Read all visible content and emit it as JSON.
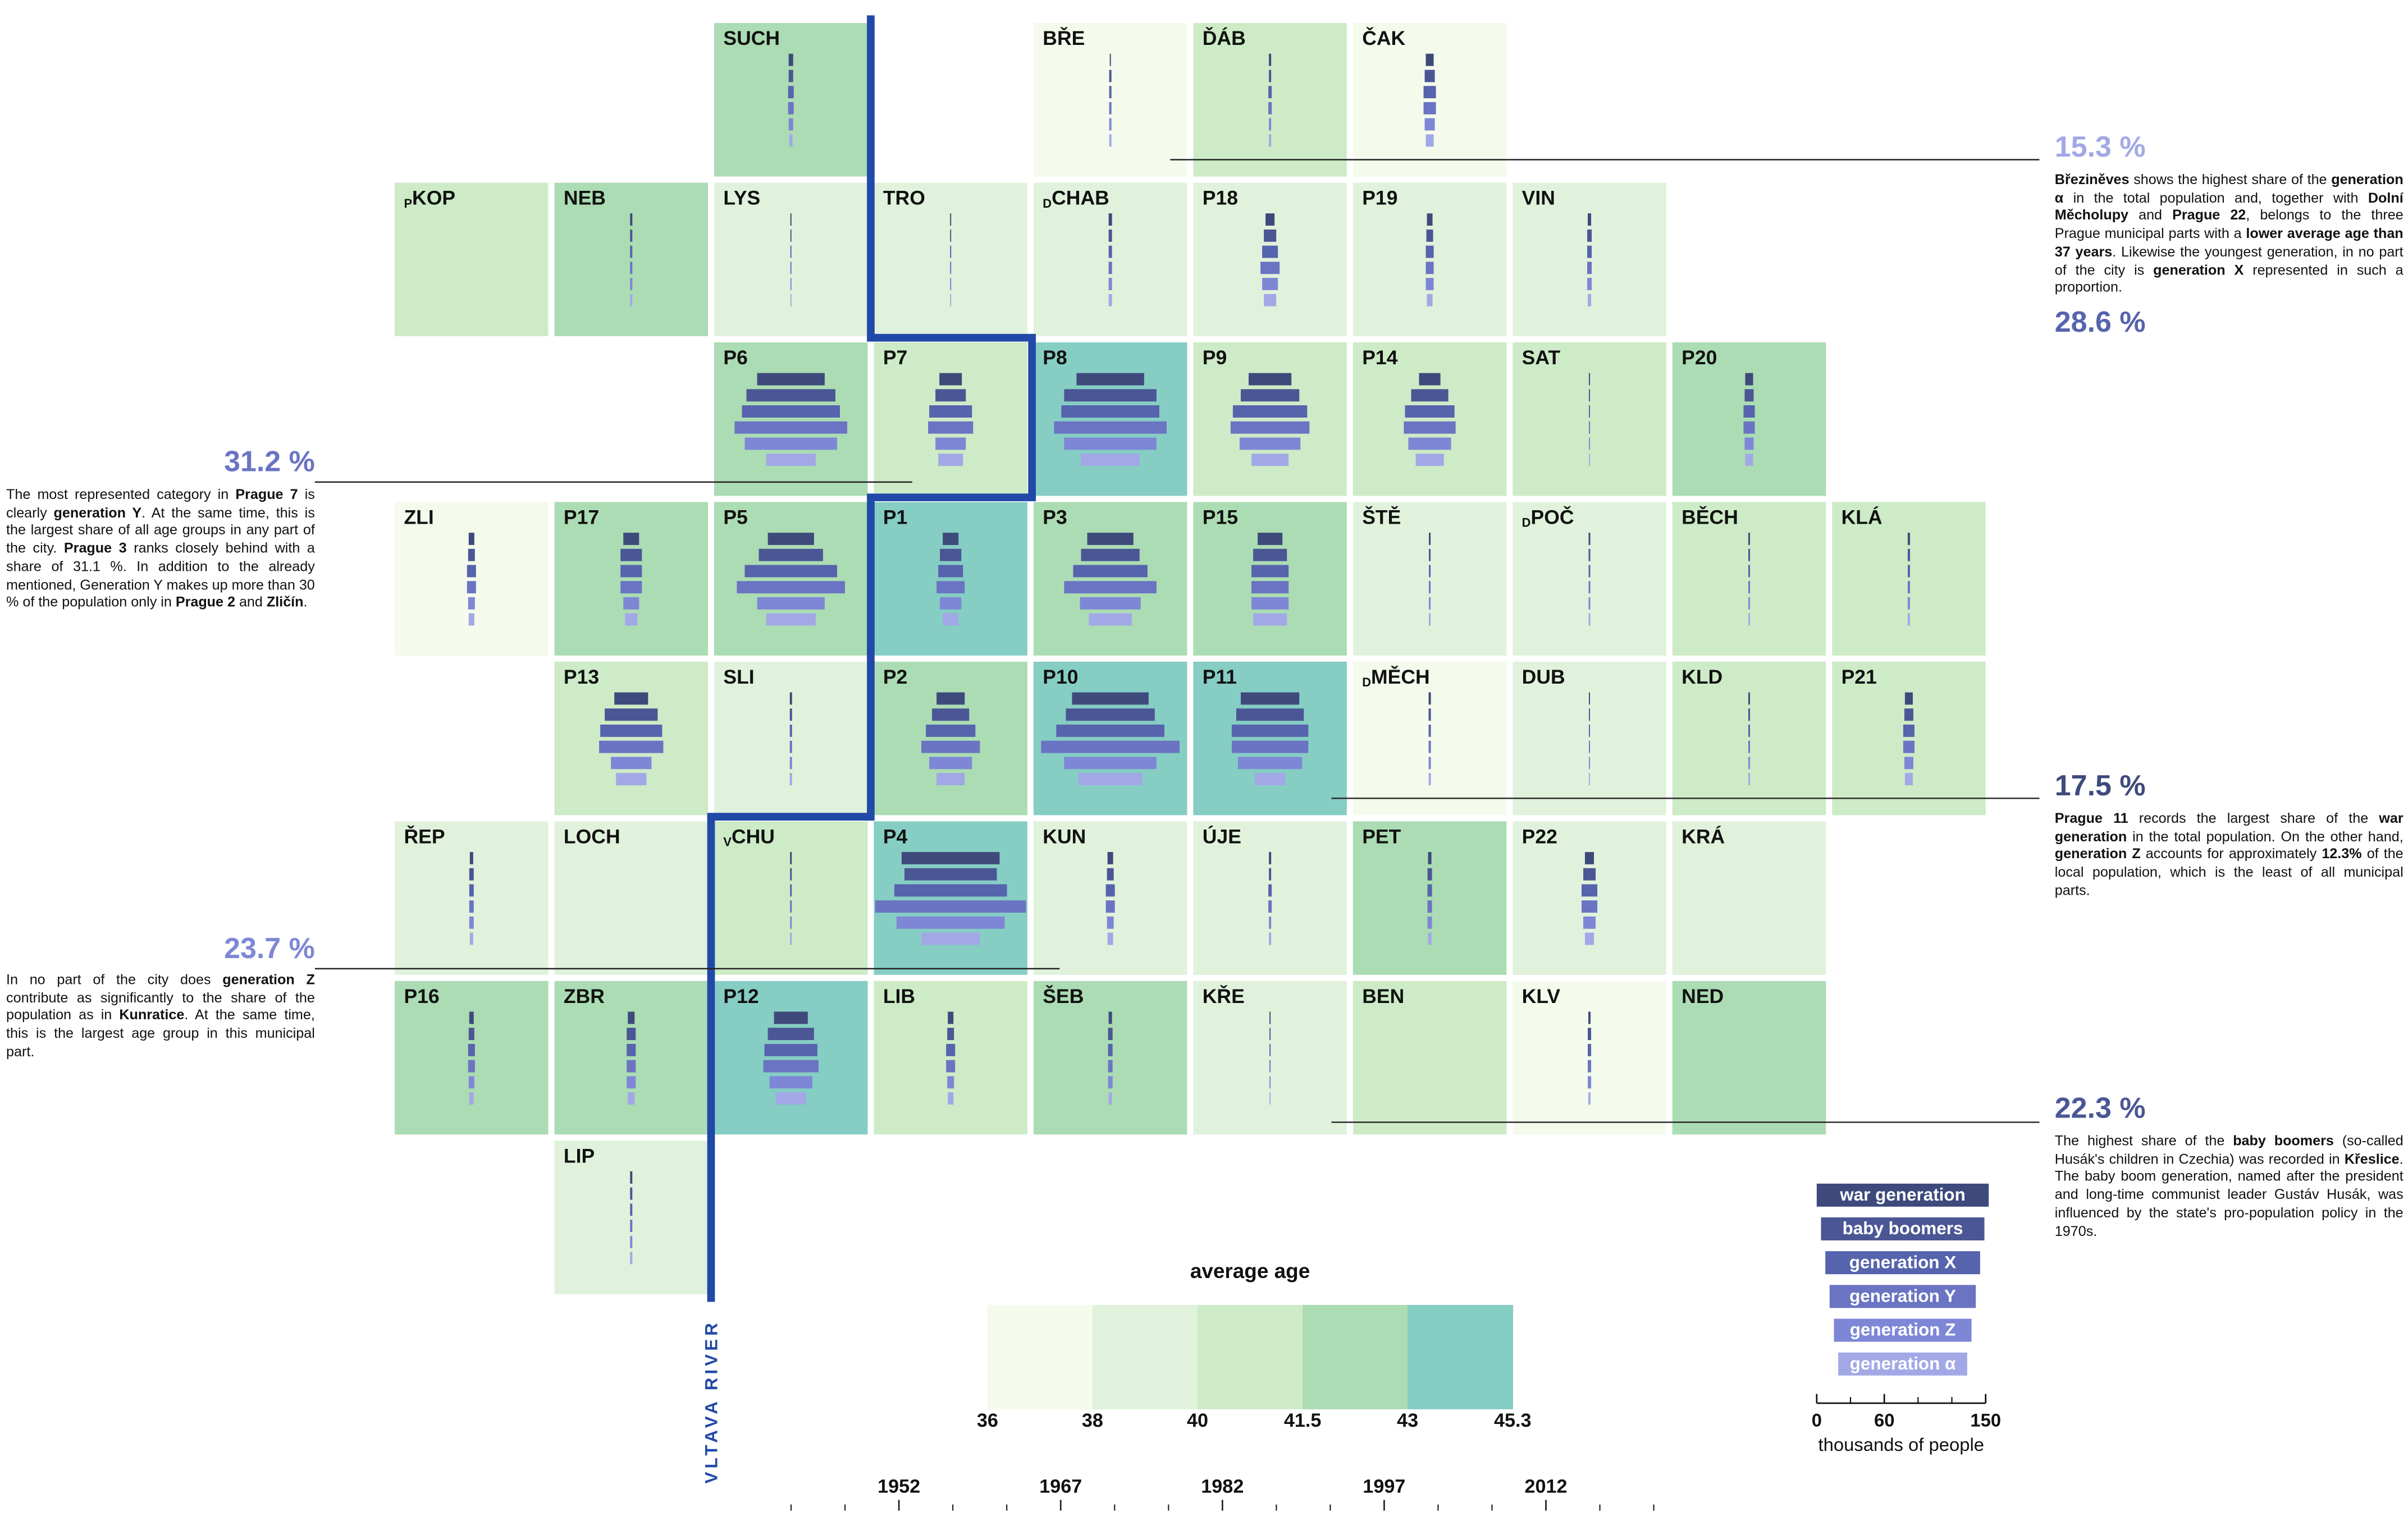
{
  "river_label": "VLTAVA RIVER",
  "generations": [
    {
      "name": "war generation",
      "color": "#3e4a7c"
    },
    {
      "name": "baby boomers",
      "color": "#4b5695"
    },
    {
      "name": "generation X",
      "color": "#5663ad"
    },
    {
      "name": "generation Y",
      "color": "#6a74c3"
    },
    {
      "name": "generation Z",
      "color": "#7e87d6"
    },
    {
      "name": "generation α",
      "color": "#a2a8e6"
    }
  ],
  "population_scale": {
    "label": "thousands of people",
    "xlim": [
      0,
      150
    ],
    "xticks": [
      0,
      60,
      150
    ],
    "minor_ticks": [
      30,
      90,
      120
    ]
  },
  "average_age_legend": {
    "title": "average age",
    "ticks": [
      36,
      38,
      40,
      41.5,
      43,
      45.3
    ],
    "colors": [
      "#f4faec",
      "#e0f2dc",
      "#cdebc6",
      "#abdcb3",
      "#86cdc4"
    ]
  },
  "timeline": {
    "xlim": [
      1937,
      2027
    ],
    "xticks": [
      1952,
      1967,
      1982,
      1997,
      2012
    ],
    "minor_ticks": [
      1942,
      1947,
      1957,
      1962,
      1972,
      1977,
      1987,
      1992,
      2002,
      2007,
      2017,
      2022
    ]
  },
  "grid": [
    [
      null,
      null,
      {
        "label": "SUCH",
        "average_age": 42.2,
        "values": [
          4,
          4,
          5,
          5,
          4,
          3
        ]
      },
      null,
      {
        "label": "BŘE",
        "average_age": 37,
        "values": [
          1,
          2,
          2,
          2,
          2,
          2
        ]
      },
      {
        "label": "ĎÁB",
        "average_age": 40.8,
        "values": [
          2,
          2,
          3,
          3,
          2,
          2
        ]
      },
      {
        "label": "ČAK",
        "average_age": 37,
        "values": [
          7,
          9,
          11,
          11,
          9,
          7
        ]
      }
    ],
    [
      {
        "prefix": "P",
        "label": "KOP",
        "average_age": 40.8
      },
      {
        "label": "NEB",
        "average_age": 42.2,
        "values": [
          2,
          2,
          2,
          2,
          2,
          2
        ]
      },
      {
        "label": "LYS",
        "average_age": 39,
        "values": [
          1,
          1,
          1,
          1,
          1,
          1
        ]
      },
      {
        "label": "TRO",
        "average_age": 39,
        "values": [
          1,
          1,
          1,
          1,
          1,
          1
        ]
      },
      {
        "prefix": "D",
        "label": "CHAB",
        "average_age": 39,
        "values": [
          3,
          3,
          3,
          3,
          3,
          3
        ]
      },
      {
        "label": "P18",
        "average_age": 39,
        "values": [
          8,
          11,
          14,
          17,
          14,
          11
        ]
      },
      {
        "label": "P19",
        "average_age": 39,
        "values": [
          5,
          6,
          7,
          7,
          7,
          5
        ]
      },
      {
        "label": "VIN",
        "average_age": 39,
        "values": [
          3,
          4,
          4,
          4,
          4,
          3
        ]
      }
    ],
    [
      null,
      null,
      {
        "label": "P6",
        "average_age": 42.2,
        "values": [
          60,
          79,
          87,
          100,
          82,
          44
        ]
      },
      {
        "label": "P7",
        "average_age": 40.8,
        "values": [
          20,
          27,
          38,
          40,
          27,
          22
        ]
      },
      {
        "label": "P8",
        "average_age": 44,
        "values": [
          60,
          82,
          87,
          100,
          82,
          52
        ]
      },
      {
        "label": "P9",
        "average_age": 40.8,
        "values": [
          38,
          52,
          66,
          70,
          54,
          33
        ]
      },
      {
        "label": "P14",
        "average_age": 40.8,
        "values": [
          19,
          33,
          44,
          46,
          38,
          25
        ]
      },
      {
        "label": "SAT",
        "average_age": 40.8,
        "values": [
          1,
          1,
          1,
          1,
          1,
          1
        ]
      },
      {
        "label": "P20",
        "average_age": 42.2,
        "values": [
          7,
          8,
          10,
          10,
          8,
          7
        ]
      }
    ],
    [
      {
        "label": "ZLI",
        "average_age": 37,
        "values": [
          5,
          6,
          8,
          8,
          6,
          5
        ]
      },
      {
        "label": "P17",
        "average_age": 42.2,
        "values": [
          14,
          19,
          19,
          19,
          14,
          11
        ]
      },
      {
        "label": "P5",
        "average_age": 42.2,
        "values": [
          41,
          57,
          82,
          96,
          60,
          44
        ]
      },
      {
        "label": "P1",
        "average_age": 44,
        "values": [
          14,
          19,
          22,
          25,
          19,
          14
        ]
      },
      {
        "label": "P3",
        "average_age": 42.2,
        "values": [
          41,
          52,
          66,
          82,
          54,
          38
        ]
      },
      {
        "label": "P15",
        "average_age": 42.2,
        "values": [
          22,
          30,
          33,
          33,
          33,
          30
        ]
      },
      {
        "label": "ŠTĚ",
        "average_age": 39,
        "values": [
          1.5,
          1.5,
          1.5,
          1.5,
          1.5,
          1.5
        ]
      },
      {
        "prefix": "D",
        "label": "POČ",
        "average_age": 39,
        "values": [
          1.5,
          1.5,
          1.5,
          1.5,
          1.5,
          1.5
        ]
      },
      {
        "label": "BĚCH",
        "average_age": 40.8,
        "values": [
          1.5,
          1.5,
          1.5,
          1.5,
          1.5,
          1.5
        ]
      },
      {
        "label": "KLÁ",
        "average_age": 40.8,
        "values": [
          2,
          2,
          2,
          2,
          2,
          2
        ]
      }
    ],
    [
      null,
      {
        "label": "P13",
        "average_age": 40.8,
        "values": [
          30,
          47,
          55,
          57,
          36,
          27
        ]
      },
      {
        "label": "SLI",
        "average_age": 39,
        "values": [
          2,
          2,
          2,
          2,
          2,
          2
        ]
      },
      {
        "label": "P2",
        "average_age": 42.2,
        "values": [
          25,
          33,
          44,
          52,
          38,
          25
        ]
      },
      {
        "label": "P10",
        "average_age": 44,
        "values": [
          68,
          79,
          96,
          123,
          82,
          57
        ]
      },
      {
        "label": "P11",
        "average_age": 44,
        "values": [
          52,
          60,
          68,
          68,
          57,
          27
        ]
      },
      {
        "prefix": "D",
        "label": "MĚCH",
        "average_age": 37,
        "values": [
          2,
          2,
          2,
          2,
          2,
          2
        ]
      },
      {
        "label": "DUB",
        "average_age": 39,
        "values": [
          1,
          1,
          1,
          1,
          1,
          1
        ]
      },
      {
        "label": "KLD",
        "average_age": 40.8,
        "values": [
          1.5,
          1.5,
          1.5,
          1.5,
          1.5,
          1.5
        ]
      },
      {
        "label": "P21",
        "average_age": 40.8,
        "values": [
          7,
          8,
          10,
          10,
          8,
          7
        ]
      }
    ],
    [
      {
        "label": "ŘEP",
        "average_age": 39,
        "values": [
          3,
          4,
          4,
          4,
          4,
          3
        ]
      },
      {
        "label": "LOCH",
        "average_age": 39
      },
      {
        "prefix": "V",
        "label": "CHU",
        "average_age": 40.8,
        "values": [
          1.5,
          1.5,
          1.5,
          1.5,
          1.5,
          1.5
        ]
      },
      {
        "label": "P4",
        "average_age": 44,
        "values": [
          87,
          82,
          100,
          134,
          96,
          52
        ]
      },
      {
        "label": "KUN",
        "average_age": 39,
        "values": [
          5,
          6,
          8,
          8,
          6,
          5
        ]
      },
      {
        "label": "ÚJE",
        "average_age": 39,
        "values": [
          2,
          2,
          3,
          3,
          2,
          2
        ]
      },
      {
        "label": "PET",
        "average_age": 42.2,
        "values": [
          3,
          4,
          4,
          4,
          4,
          3
        ]
      },
      {
        "label": "P22",
        "average_age": 39,
        "values": [
          8,
          11,
          14,
          14,
          11,
          8
        ]
      },
      {
        "label": "KRÁ",
        "average_age": 39
      }
    ],
    [
      {
        "label": "P16",
        "average_age": 42.2,
        "values": [
          4,
          5,
          6,
          6,
          5,
          4
        ]
      },
      {
        "label": "ZBR",
        "average_age": 42.2,
        "values": [
          6,
          8,
          8,
          8,
          8,
          6
        ]
      },
      {
        "label": "P12",
        "average_age": 44,
        "values": [
          30,
          41,
          47,
          49,
          38,
          27
        ]
      },
      {
        "label": "LIB",
        "average_age": 40.8,
        "values": [
          5,
          6,
          8,
          8,
          6,
          5
        ]
      },
      {
        "label": "ŠEB",
        "average_age": 42.2,
        "values": [
          3,
          4,
          4,
          4,
          4,
          3
        ]
      },
      {
        "label": "KŘE",
        "average_age": 39,
        "values": [
          1,
          1,
          1,
          1,
          1,
          1
        ]
      },
      {
        "label": "BEN",
        "average_age": 40.8
      },
      {
        "label": "KLV",
        "average_age": 37,
        "values": [
          2,
          3,
          3,
          3,
          3,
          2
        ]
      },
      {
        "label": "NED",
        "average_age": 42.2
      }
    ],
    [
      null,
      {
        "label": "LIP",
        "average_age": 39,
        "values": [
          2,
          2,
          2,
          2,
          2,
          2
        ]
      }
    ]
  ],
  "callouts": [
    {
      "percent": "15.3 %",
      "color": "#a2a8e6",
      "text": [
        {
          "b": "Březiněves"
        },
        {
          "t": " shows the highest share of the "
        },
        {
          "b": "generation α"
        },
        {
          "t": " in the total population and, together with "
        },
        {
          "b": "Dolní Měcholupy"
        },
        {
          "t": " and "
        },
        {
          "b": "Prague 22"
        },
        {
          "t": ", belongs to the three Prague municipal parts with a "
        },
        {
          "b": "lower average age than 37 years"
        },
        {
          "t": ". Likewise the youngest generation, in no part of the city is "
        },
        {
          "b": "generation X"
        },
        {
          "t": " represented in such a proportion."
        }
      ],
      "percent_after": "28.6 %",
      "color_after": "#5663ad"
    },
    {
      "percent": "31.2 %",
      "color": "#6a74c3",
      "text": [
        {
          "t": "The most represented category in "
        },
        {
          "b": "Prague 7"
        },
        {
          "t": " is clearly "
        },
        {
          "b": "generation Y"
        },
        {
          "t": ". At the same time, this is the largest share of all age groups in any part of the city. "
        },
        {
          "b": "Prague 3"
        },
        {
          "t": " ranks closely behind with a share of 31.1 %. In addition to the already mentioned, Generation Y makes up more than 30 % of the population only in "
        },
        {
          "b": "Prague 2"
        },
        {
          "t": " and "
        },
        {
          "b": "Zličín"
        },
        {
          "t": "."
        }
      ]
    },
    {
      "percent": "17.5 %",
      "color": "#3e4a7c",
      "text": [
        {
          "b": "Prague 11"
        },
        {
          "t": " records the largest share of the "
        },
        {
          "b": "war generation"
        },
        {
          "t": " in the total population. On the other hand, "
        },
        {
          "b": "generation Z"
        },
        {
          "t": " accounts for approximately "
        },
        {
          "b": "12.3%"
        },
        {
          "t": " of the local population, which is the least of all municipal parts."
        }
      ]
    },
    {
      "percent": "23.7 %",
      "color": "#7e87d6",
      "text": [
        {
          "t": "In no part of the city does "
        },
        {
          "b": "generation Z"
        },
        {
          "t": " contribute as significantly to the share of the population as in "
        },
        {
          "b": "Kunratice"
        },
        {
          "t": ". At the same time, this is the largest age group in this municipal part."
        }
      ]
    },
    {
      "percent": "22.3 %",
      "color": "#4b5695",
      "text": [
        {
          "t": "The highest share of the "
        },
        {
          "b": "baby boomers"
        },
        {
          "t": " (so-called Husák's children in Czechia) was recorded in "
        },
        {
          "b": "Křeslice"
        },
        {
          "t": ". The baby boom generation, named after the president and long-time communist leader Gustáv Husák, was influenced by the state's pro-population policy in the 1970s."
        }
      ]
    }
  ]
}
